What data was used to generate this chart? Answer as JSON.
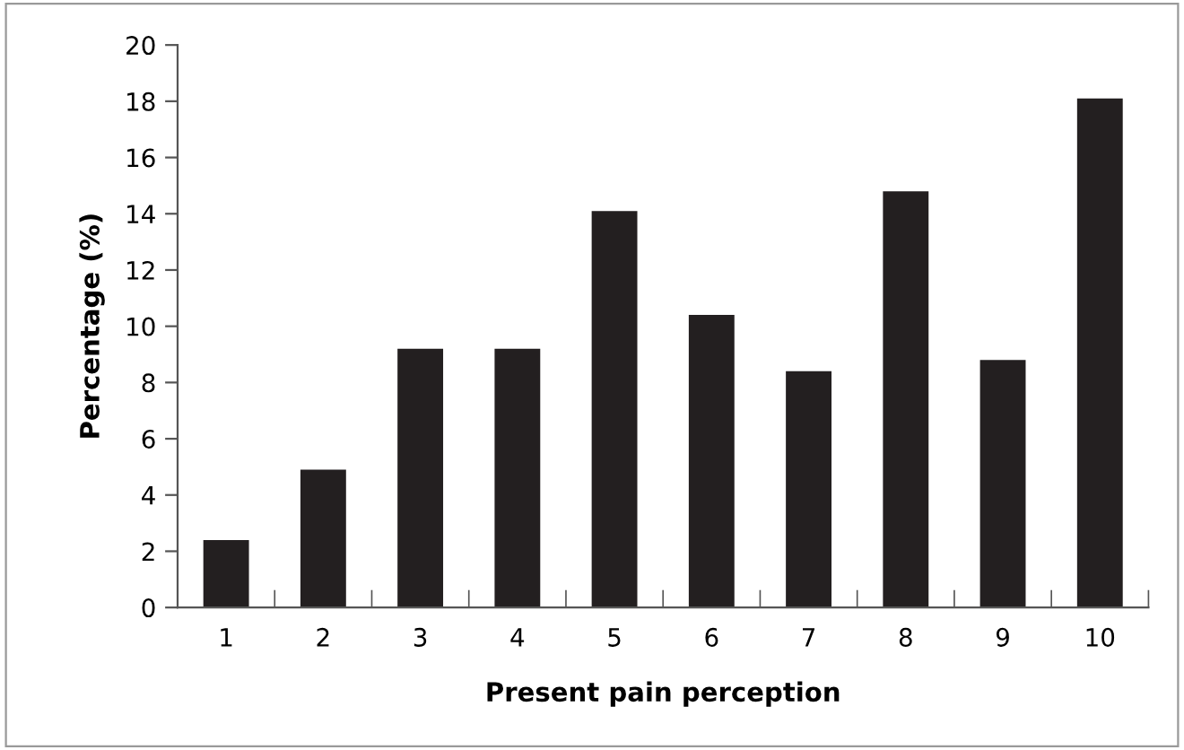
{
  "chart_data": {
    "type": "bar",
    "xlabel": "Present pain perception",
    "ylabel": "Percentage (%)",
    "categories": [
      "1",
      "2",
      "3",
      "4",
      "5",
      "6",
      "7",
      "8",
      "9",
      "10"
    ],
    "values": [
      2.4,
      4.9,
      9.2,
      9.2,
      14.1,
      10.4,
      8.4,
      14.8,
      8.8,
      18.1
    ],
    "color": "#231f20",
    "ylim": [
      0,
      20
    ],
    "yticks": [
      0,
      2,
      4,
      6,
      8,
      10,
      12,
      14,
      16,
      18,
      20
    ],
    "grid": false
  }
}
